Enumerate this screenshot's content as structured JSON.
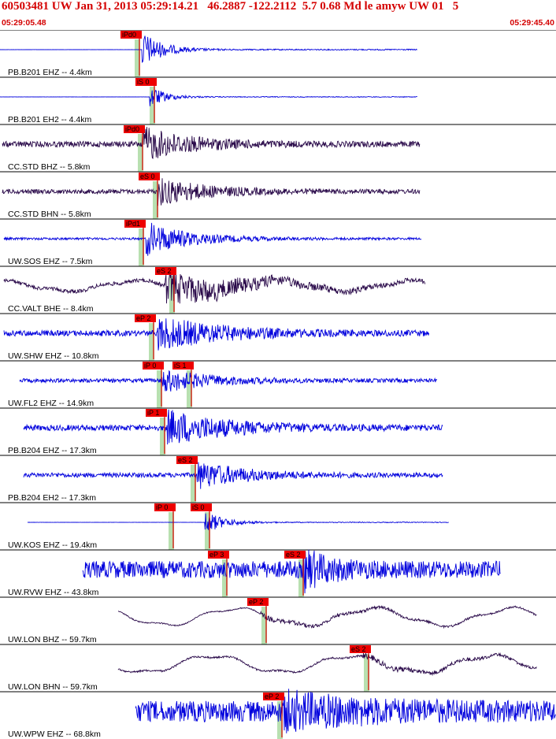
{
  "header": {
    "title": "60503481 UW Jan 31, 2013 05:29:14.21   46.2887 -122.2112  5.7 0.68 Md le amyw UW 01   5",
    "time_start": "05:29:05.48",
    "time_end": "05:29:45.40"
  },
  "colors": {
    "header_text": "#d40000",
    "trace_blue": "#0000dd",
    "trace_dark": "#2a0a4a",
    "pick_box": "#ee0000",
    "pick_band": "#b8e0b0",
    "pick_line": "#dd0000",
    "separator": "#000000"
  },
  "traces": [
    {
      "label": "PB.B201 EHZ -- 4.4km",
      "color": "blue",
      "start": 0,
      "end": 530,
      "amp": 1.0,
      "noise": 0.03,
      "onset": 180,
      "decay": 25,
      "lowfreq": 0,
      "flat_before": true,
      "picks": [
        {
          "label": "iPd0",
          "x": 153
        }
      ]
    },
    {
      "label": "PB.B201 EH2 -- 4.4km",
      "color": "blue",
      "start": 0,
      "end": 530,
      "amp": 0.6,
      "noise": 0.02,
      "onset": 190,
      "decay": 20,
      "lowfreq": 0,
      "flat_before": true,
      "picks": [
        {
          "label": "iS 0",
          "x": 172
        }
      ]
    },
    {
      "label": "CC.STD BHZ -- 5.8km",
      "color": "dark",
      "start": 3,
      "end": 533,
      "amp": 0.9,
      "noise": 0.15,
      "onset": 178,
      "decay": 60,
      "lowfreq": 0,
      "flat_before": false,
      "picks": [
        {
          "label": "iPd0",
          "x": 157
        }
      ]
    },
    {
      "label": "CC.STD BHN -- 5.8km",
      "color": "dark",
      "start": 3,
      "end": 533,
      "amp": 0.7,
      "noise": 0.12,
      "onset": 200,
      "decay": 60,
      "lowfreq": 0,
      "flat_before": false,
      "picks": [
        {
          "label": "eS 0",
          "x": 176
        }
      ]
    },
    {
      "label": "UW.SOS EHZ -- 7.5km",
      "color": "blue",
      "start": 5,
      "end": 535,
      "amp": 0.9,
      "noise": 0.06,
      "onset": 185,
      "decay": 55,
      "lowfreq": 0,
      "flat_before": false,
      "picks": [
        {
          "label": "iPd1",
          "x": 158
        }
      ]
    },
    {
      "label": "CC.VALT BHE -- 8.4km",
      "color": "dark",
      "start": 5,
      "end": 540,
      "amp": 0.9,
      "noise": 0.1,
      "onset": 210,
      "decay": 90,
      "lowfreq": 0.45,
      "flat_before": false,
      "picks": [
        {
          "label": "eS 2",
          "x": 197
        }
      ]
    },
    {
      "label": "UW.SHW EHZ -- 10.8km",
      "color": "blue",
      "start": 5,
      "end": 545,
      "amp": 0.85,
      "noise": 0.15,
      "onset": 200,
      "decay": 80,
      "lowfreq": 0,
      "flat_before": false,
      "picks": [
        {
          "label": "eP 2",
          "x": 171
        }
      ]
    },
    {
      "label": "UW.FL2 EHZ -- 14.9km",
      "color": "blue",
      "start": 25,
      "end": 555,
      "amp": 0.6,
      "noise": 0.1,
      "onset": 205,
      "decay": 60,
      "lowfreq": 0,
      "flat_before": false,
      "picks": [
        {
          "label": "iP 0",
          "x": 181
        },
        {
          "label": "iS 1",
          "x": 219
        }
      ]
    },
    {
      "label": "PB.B204 EHZ -- 17.3km",
      "color": "blue",
      "start": 30,
      "end": 562,
      "amp": 0.9,
      "noise": 0.15,
      "onset": 212,
      "decay": 75,
      "lowfreq": 0,
      "flat_before": false,
      "picks": [
        {
          "label": "iP 1",
          "x": 185
        }
      ]
    },
    {
      "label": "PB.B204 EH2 -- 17.3km",
      "color": "blue",
      "start": 30,
      "end": 562,
      "amp": 0.7,
      "noise": 0.12,
      "onset": 250,
      "decay": 60,
      "lowfreq": 0,
      "flat_before": false,
      "picks": [
        {
          "label": "eS 2",
          "x": 224
        }
      ]
    },
    {
      "label": "UW.KOS EHZ -- 19.4km",
      "color": "blue",
      "start": 35,
      "end": 570,
      "amp": 0.6,
      "noise": 0.02,
      "onset": 260,
      "decay": 25,
      "lowfreq": 0,
      "flat_before": true,
      "picks": [
        {
          "label": "iP 0",
          "x": 196
        },
        {
          "label": "iS 0",
          "x": 242
        }
      ]
    },
    {
      "label": "UW.RVW EHZ -- 43.8km",
      "color": "blue",
      "start": 105,
      "end": 636,
      "amp": 0.9,
      "noise": 0.45,
      "onset": 385,
      "decay": 30,
      "lowfreq": 0,
      "flat_before": false,
      "picks": [
        {
          "label": "eP 3",
          "x": 264
        },
        {
          "label": "eS 2",
          "x": 361
        }
      ]
    },
    {
      "label": "UW.LON BHZ -- 59.7km",
      "color": "dark",
      "start": 150,
      "end": 682,
      "amp": 0.1,
      "noise": 0.03,
      "onset": 330,
      "decay": 200,
      "lowfreq": 0.75,
      "flat_before": false,
      "picks": [
        {
          "label": "eP 2",
          "x": 314
        }
      ]
    },
    {
      "label": "UW.LON BHN -- 59.7km",
      "color": "dark",
      "start": 150,
      "end": 682,
      "amp": 0.1,
      "noise": 0.05,
      "onset": 460,
      "decay": 200,
      "lowfreq": 0.75,
      "flat_before": false,
      "picks": [
        {
          "label": "eS 2",
          "x": 444
        }
      ]
    },
    {
      "label": "UW.WPW EHZ -- 68.8km",
      "color": "blue",
      "start": 172,
      "end": 706,
      "amp": 0.7,
      "noise": 0.55,
      "onset": 360,
      "decay": 100,
      "lowfreq": 0,
      "flat_before": false,
      "picks": [
        {
          "label": "eP 2",
          "x": 334
        }
      ]
    }
  ]
}
